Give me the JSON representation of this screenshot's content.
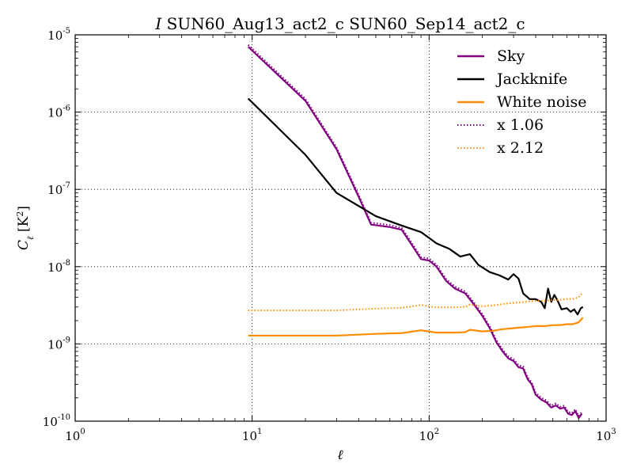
{
  "chart_data": {
    "type": "line",
    "title_var": "I",
    "title_rest": " SUN60_Aug13_act2_c SUN60_Sep14_act2_c",
    "xlabel": "ℓ",
    "ylabel_main": "C",
    "ylabel_sub": "ℓ",
    "ylabel_unit_open": " [K",
    "ylabel_unit_exp": "2",
    "ylabel_unit_close": "]",
    "xscale": "log",
    "yscale": "log",
    "xlim": [
      1,
      1000
    ],
    "ylim": [
      1e-10,
      1e-05
    ],
    "grid": true,
    "legend_position": "top-right",
    "x_ticks": [
      {
        "base": "10",
        "exp": "0",
        "value": 1
      },
      {
        "base": "10",
        "exp": "1",
        "value": 10
      },
      {
        "base": "10",
        "exp": "2",
        "value": 100
      },
      {
        "base": "10",
        "exp": "3",
        "value": 1000
      }
    ],
    "y_ticks": [
      {
        "base": "10",
        "exp": "-10",
        "value": 1e-10
      },
      {
        "base": "10",
        "exp": "-9",
        "value": 1e-09
      },
      {
        "base": "10",
        "exp": "-8",
        "value": 1e-08
      },
      {
        "base": "10",
        "exp": "-7",
        "value": 1e-07
      },
      {
        "base": "10",
        "exp": "-6",
        "value": 1e-06
      },
      {
        "base": "10",
        "exp": "-5",
        "value": 1e-05
      }
    ],
    "series": [
      {
        "name": "Sky",
        "color": "#800080",
        "style": "solid",
        "points": [
          [
            9.5,
            7e-06
          ],
          [
            20,
            1.4e-06
          ],
          [
            30,
            3.3e-07
          ],
          [
            40,
            8e-08
          ],
          [
            47,
            3.5e-08
          ],
          [
            60,
            3.25e-08
          ],
          [
            70,
            3e-08
          ],
          [
            80,
            1.9e-08
          ],
          [
            90,
            1.25e-08
          ],
          [
            100,
            1.2e-08
          ],
          [
            110,
            1e-08
          ],
          [
            125,
            6.5e-09
          ],
          [
            140,
            5.2e-09
          ],
          [
            160,
            4.5e-09
          ],
          [
            180,
            3.2e-09
          ],
          [
            200,
            2.3e-09
          ],
          [
            220,
            1.6e-09
          ],
          [
            240,
            1.05e-09
          ],
          [
            260,
            8e-10
          ],
          [
            280,
            6.5e-10
          ],
          [
            300,
            6e-10
          ],
          [
            320,
            5e-10
          ],
          [
            340,
            4.8e-10
          ],
          [
            360,
            3.5e-10
          ],
          [
            380,
            3e-10
          ],
          [
            400,
            2.2e-10
          ],
          [
            430,
            1.9e-10
          ],
          [
            460,
            1.75e-10
          ],
          [
            490,
            1.5e-10
          ],
          [
            520,
            1.6e-10
          ],
          [
            550,
            1.45e-10
          ],
          [
            580,
            1.5e-10
          ],
          [
            610,
            1.25e-10
          ],
          [
            640,
            1.2e-10
          ],
          [
            670,
            1.35e-10
          ],
          [
            700,
            1.1e-10
          ],
          [
            730,
            1.25e-10
          ]
        ]
      },
      {
        "name": "Jackknife",
        "color": "#000000",
        "style": "solid",
        "points": [
          [
            9.5,
            1.5e-06
          ],
          [
            20,
            2.8e-07
          ],
          [
            30,
            9e-08
          ],
          [
            50,
            4.5e-08
          ],
          [
            70,
            3.4e-08
          ],
          [
            90,
            2.8e-08
          ],
          [
            110,
            2e-08
          ],
          [
            130,
            1.7e-08
          ],
          [
            150,
            1.35e-08
          ],
          [
            170,
            1.45e-08
          ],
          [
            190,
            1.05e-08
          ],
          [
            220,
            8.5e-09
          ],
          [
            250,
            7.7e-09
          ],
          [
            280,
            6.8e-09
          ],
          [
            300,
            8e-09
          ],
          [
            320,
            7e-09
          ],
          [
            340,
            4.5e-09
          ],
          [
            370,
            3.8e-09
          ],
          [
            400,
            3.8e-09
          ],
          [
            430,
            3.5e-09
          ],
          [
            450,
            2.9e-09
          ],
          [
            470,
            5.2e-09
          ],
          [
            490,
            3.5e-09
          ],
          [
            510,
            4.3e-09
          ],
          [
            530,
            3.7e-09
          ],
          [
            560,
            2.8e-09
          ],
          [
            600,
            2.9e-09
          ],
          [
            630,
            2.6e-09
          ],
          [
            660,
            2.8e-09
          ],
          [
            690,
            2.4e-09
          ],
          [
            720,
            2.9e-09
          ],
          [
            740,
            3e-09
          ]
        ]
      },
      {
        "name": "White noise",
        "color": "#ff8c00",
        "style": "solid",
        "points": [
          [
            9.5,
            1.28e-09
          ],
          [
            20,
            1.28e-09
          ],
          [
            30,
            1.28e-09
          ],
          [
            50,
            1.35e-09
          ],
          [
            70,
            1.38e-09
          ],
          [
            90,
            1.5e-09
          ],
          [
            110,
            1.4e-09
          ],
          [
            140,
            1.4e-09
          ],
          [
            160,
            1.42e-09
          ],
          [
            170,
            1.52e-09
          ],
          [
            200,
            1.45e-09
          ],
          [
            230,
            1.48e-09
          ],
          [
            260,
            1.55e-09
          ],
          [
            300,
            1.6e-09
          ],
          [
            350,
            1.65e-09
          ],
          [
            400,
            1.7e-09
          ],
          [
            450,
            1.7e-09
          ],
          [
            500,
            1.75e-09
          ],
          [
            550,
            1.75e-09
          ],
          [
            600,
            1.8e-09
          ],
          [
            650,
            1.8e-09
          ],
          [
            700,
            1.9e-09
          ],
          [
            740,
            2.2e-09
          ]
        ]
      },
      {
        "name": "x 1.06",
        "color": "#800080",
        "style": "dotted",
        "scale_of": "Sky",
        "factor": 1.06
      },
      {
        "name": "x 2.12",
        "color": "#ff8c00",
        "style": "dotted",
        "scale_of": "White noise",
        "factor": 2.12
      }
    ]
  }
}
